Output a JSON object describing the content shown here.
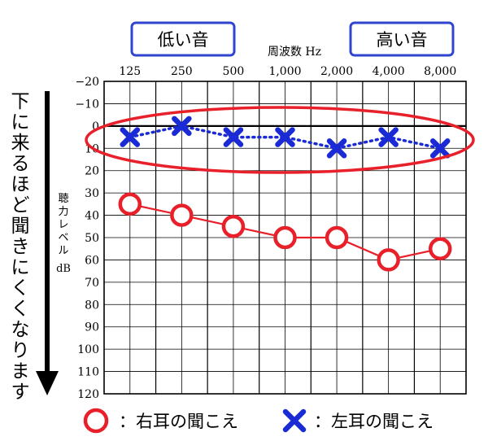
{
  "chart_data": {
    "type": "line",
    "title": "",
    "xlabel": "周波数 Hz",
    "ylabel": "聴力レベル dB",
    "categories": [
      "125",
      "250",
      "500",
      "1,000",
      "2,000",
      "4,000",
      "8,000"
    ],
    "yticks": [
      "−20",
      "−10",
      "0",
      "10",
      "20",
      "30",
      "40",
      "50",
      "60",
      "70",
      "80",
      "90",
      "100",
      "110",
      "120"
    ],
    "ylim": [
      -20,
      120
    ],
    "y_inverted": true,
    "grid": true,
    "series": [
      {
        "name": "右耳の聞こえ",
        "marker": "circle",
        "color": "#e8202a",
        "line": "solid",
        "values": [
          35,
          40,
          45,
          50,
          50,
          60,
          55
        ]
      },
      {
        "name": "左耳の聞こえ",
        "marker": "cross",
        "color": "#1a2bd6",
        "line": "dotted",
        "values": [
          5,
          0,
          5,
          5,
          10,
          5,
          10
        ]
      }
    ],
    "legend_position": "bottom",
    "annotations": {
      "low_label": "低い音",
      "high_label": "高い音",
      "arrow_label": "下に来るほど聞きにくくなります"
    }
  }
}
